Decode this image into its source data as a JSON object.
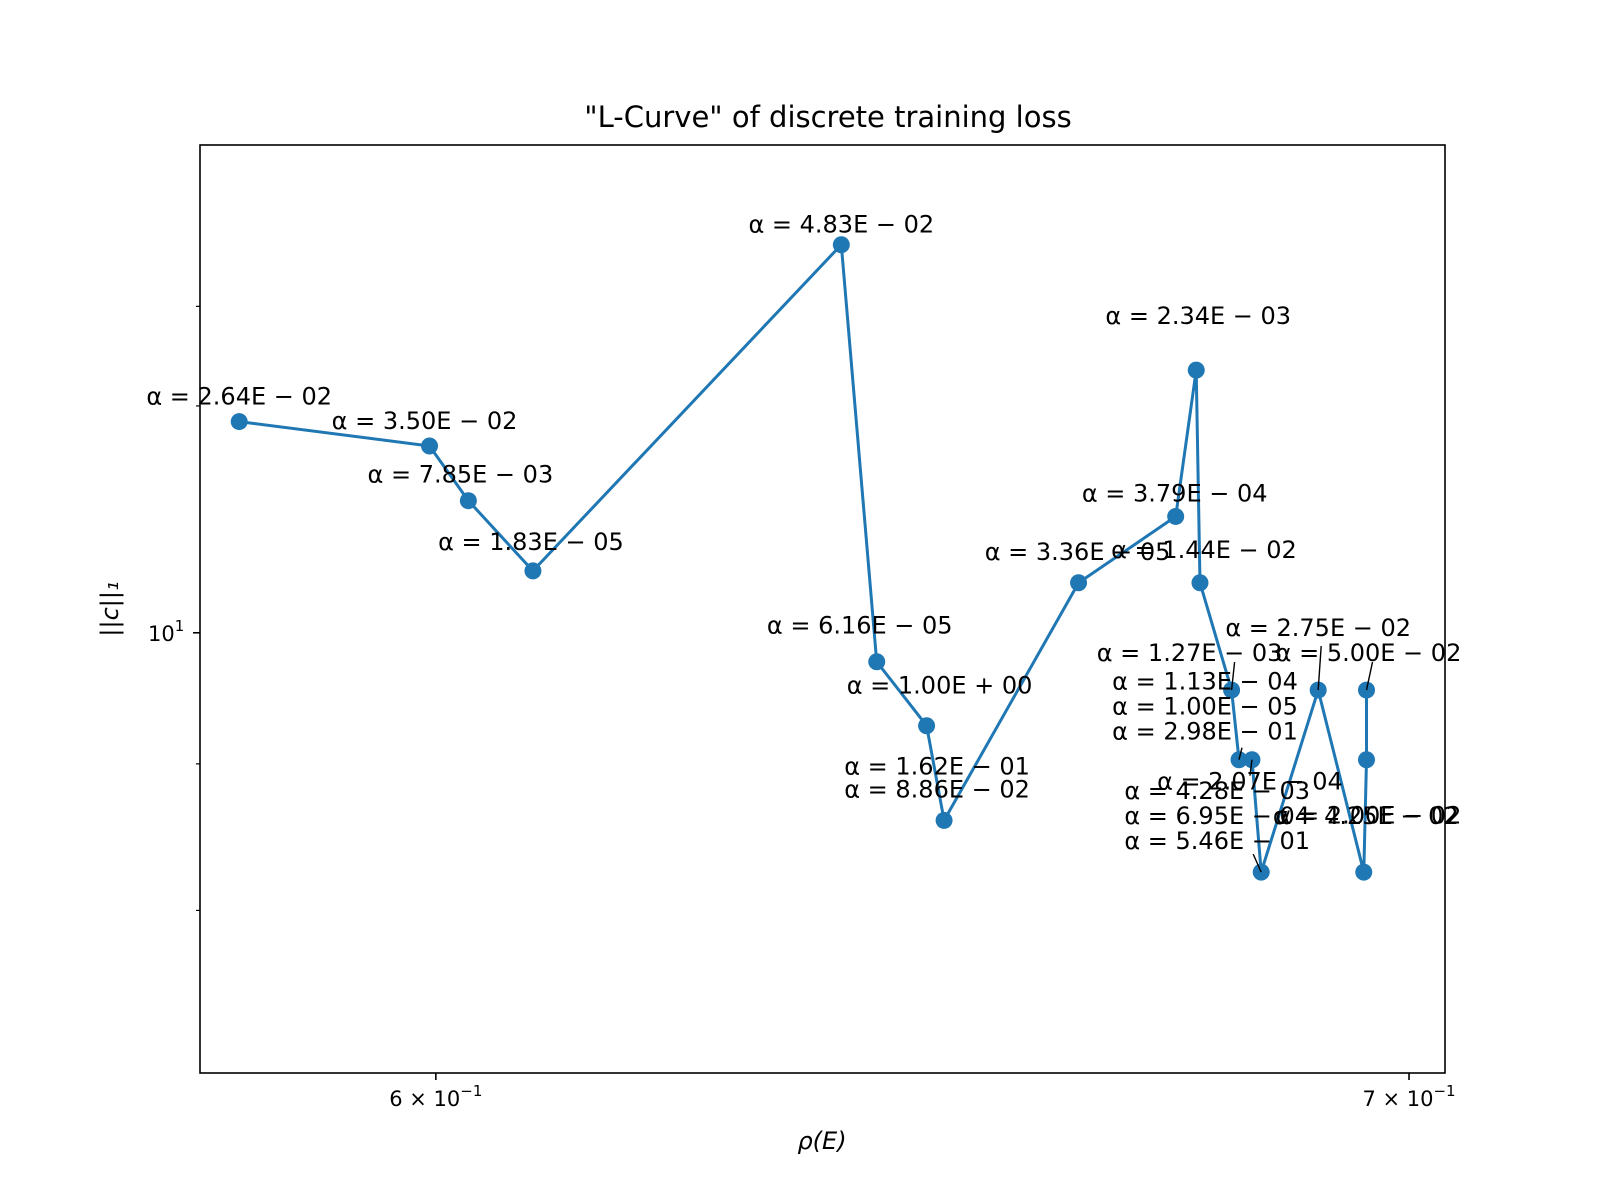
{
  "chart_data": {
    "type": "line",
    "title": "\"L-Curve\" of discrete training loss",
    "xlabel": "ρ(E)",
    "ylabel": "||c||₁",
    "xscale": "log",
    "yscale": "log",
    "xlim": [
      0.578,
      0.704
    ],
    "ylim": [
      7.02,
      14.8
    ],
    "grid": false,
    "color": "#1f77b4",
    "x_tick_labels": [
      {
        "value": 0.6,
        "base": "6 × 10",
        "exp": "−1"
      },
      {
        "value": 0.7,
        "base": "7 × 10",
        "exp": "−1"
      }
    ],
    "y_tick_labels": [
      {
        "value": 10,
        "base": "10",
        "exp": "1"
      }
    ],
    "y_minor_ticks": [
      8,
      9,
      12,
      13
    ],
    "points": [
      {
        "x": 0.5816,
        "y": 11.85,
        "label": "α = 2.64E − 02"
      },
      {
        "x": 0.5994,
        "y": 11.62,
        "label": "α = 3.50E − 02"
      },
      {
        "x": 0.6031,
        "y": 11.12,
        "label": "α = 7.85E − 03"
      },
      {
        "x": 0.6093,
        "y": 10.51,
        "label": "α = 1.83E − 05"
      },
      {
        "x": 0.6398,
        "y": 13.66,
        "label": "α = 4.83E − 02"
      },
      {
        "x": 0.6434,
        "y": 9.77,
        "label": "α = 6.16E − 05"
      },
      {
        "x": 0.6485,
        "y": 9.28,
        "label": "α = 1.00E + 00"
      },
      {
        "x": 0.6503,
        "y": 8.6,
        "label": "α = 1.62E − 01 / α = 8.86E − 02"
      },
      {
        "x": 0.6643,
        "y": 10.41,
        "label": "α = 3.36E − 05"
      },
      {
        "x": 0.6746,
        "y": 10.98,
        "label": "α = 3.79E − 04"
      },
      {
        "x": 0.6768,
        "y": 12.35,
        "label": "α = 2.34E − 03"
      },
      {
        "x": 0.6772,
        "y": 10.41,
        "label": "α = 1.44E − 02"
      },
      {
        "x": 0.6806,
        "y": 9.55,
        "label": "α = 1.27E − 03"
      },
      {
        "x": 0.6814,
        "y": 9.03,
        "label": "α = 1.13E − 04 / α = 1.00E − 05 / α = 2.98E − 01"
      },
      {
        "x": 0.6828,
        "y": 9.03,
        "label": "α = 2.07E − 04"
      },
      {
        "x": 0.6838,
        "y": 8.25,
        "label": "α = 4.28E − 03 / α = 6.95E − 04 / α = 5.46E − 01"
      },
      {
        "x": 0.69,
        "y": 9.55,
        "label": "α = 2.75E − 02"
      },
      {
        "x": 0.695,
        "y": 8.25,
        "label": "α = 4.25E − 02"
      },
      {
        "x": 0.6953,
        "y": 9.03,
        "label": "α = 2.00E − 02"
      },
      {
        "x": 0.6953,
        "y": 9.55,
        "label": "α = 5.00E − 02"
      }
    ],
    "annotations": [
      {
        "text": "α = 2.64E − 02",
        "x": 0.5816,
        "y": 11.85
      },
      {
        "text": "α = 3.50E − 02",
        "x": 0.5994,
        "y": 11.62
      },
      {
        "text": "α = 7.85E − 03",
        "x": 0.6031,
        "y": 11.12
      },
      {
        "text": "α = 1.83E − 05",
        "x": 0.6093,
        "y": 10.51
      },
      {
        "text": "α = 4.83E − 02",
        "x": 0.6398,
        "y": 13.66
      },
      {
        "text": "α = 6.16E − 05",
        "x": 0.6434,
        "y": 9.77
      },
      {
        "text": "α = 1.00E + 00",
        "x": 0.6485,
        "y": 9.28
      },
      {
        "text": "α = 1.62E − 01",
        "x": 0.6503,
        "y": 8.6
      },
      {
        "text": "α = 8.86E − 02",
        "x": 0.6503,
        "y": 8.6
      },
      {
        "text": "α = 3.36E − 05",
        "x": 0.6643,
        "y": 10.41
      },
      {
        "text": "α = 3.79E − 04",
        "x": 0.6746,
        "y": 10.98
      },
      {
        "text": "α = 2.34E − 03",
        "x": 0.6768,
        "y": 12.35
      },
      {
        "text": "α = 1.44E − 02",
        "x": 0.6772,
        "y": 10.41
      },
      {
        "text": "α = 2.75E − 02",
        "x": 0.69,
        "y": 9.55
      },
      {
        "text": "α = 1.27E − 03",
        "x": 0.6806,
        "y": 9.55
      },
      {
        "text": "α = 5.00E − 02",
        "x": 0.6953,
        "y": 9.55
      },
      {
        "text": "α = 1.13E − 04",
        "x": 0.6814,
        "y": 9.03
      },
      {
        "text": "α = 1.00E − 05",
        "x": 0.6814,
        "y": 9.03
      },
      {
        "text": "α = 2.98E − 01",
        "x": 0.6814,
        "y": 9.03
      },
      {
        "text": "α = 2.00E − 02",
        "x": 0.6953,
        "y": 9.03
      },
      {
        "text": "α = 2.07E − 04",
        "x": 0.6828,
        "y": 9.03
      },
      {
        "text": "α = 4.28E − 03",
        "x": 0.6838,
        "y": 8.25
      },
      {
        "text": "α = 6.95E − 04",
        "x": 0.6838,
        "y": 8.25
      },
      {
        "text": "α = 4.25E − 02",
        "x": 0.695,
        "y": 8.25
      },
      {
        "text": "α = 5.46E − 01",
        "x": 0.6838,
        "y": 8.25
      }
    ]
  }
}
